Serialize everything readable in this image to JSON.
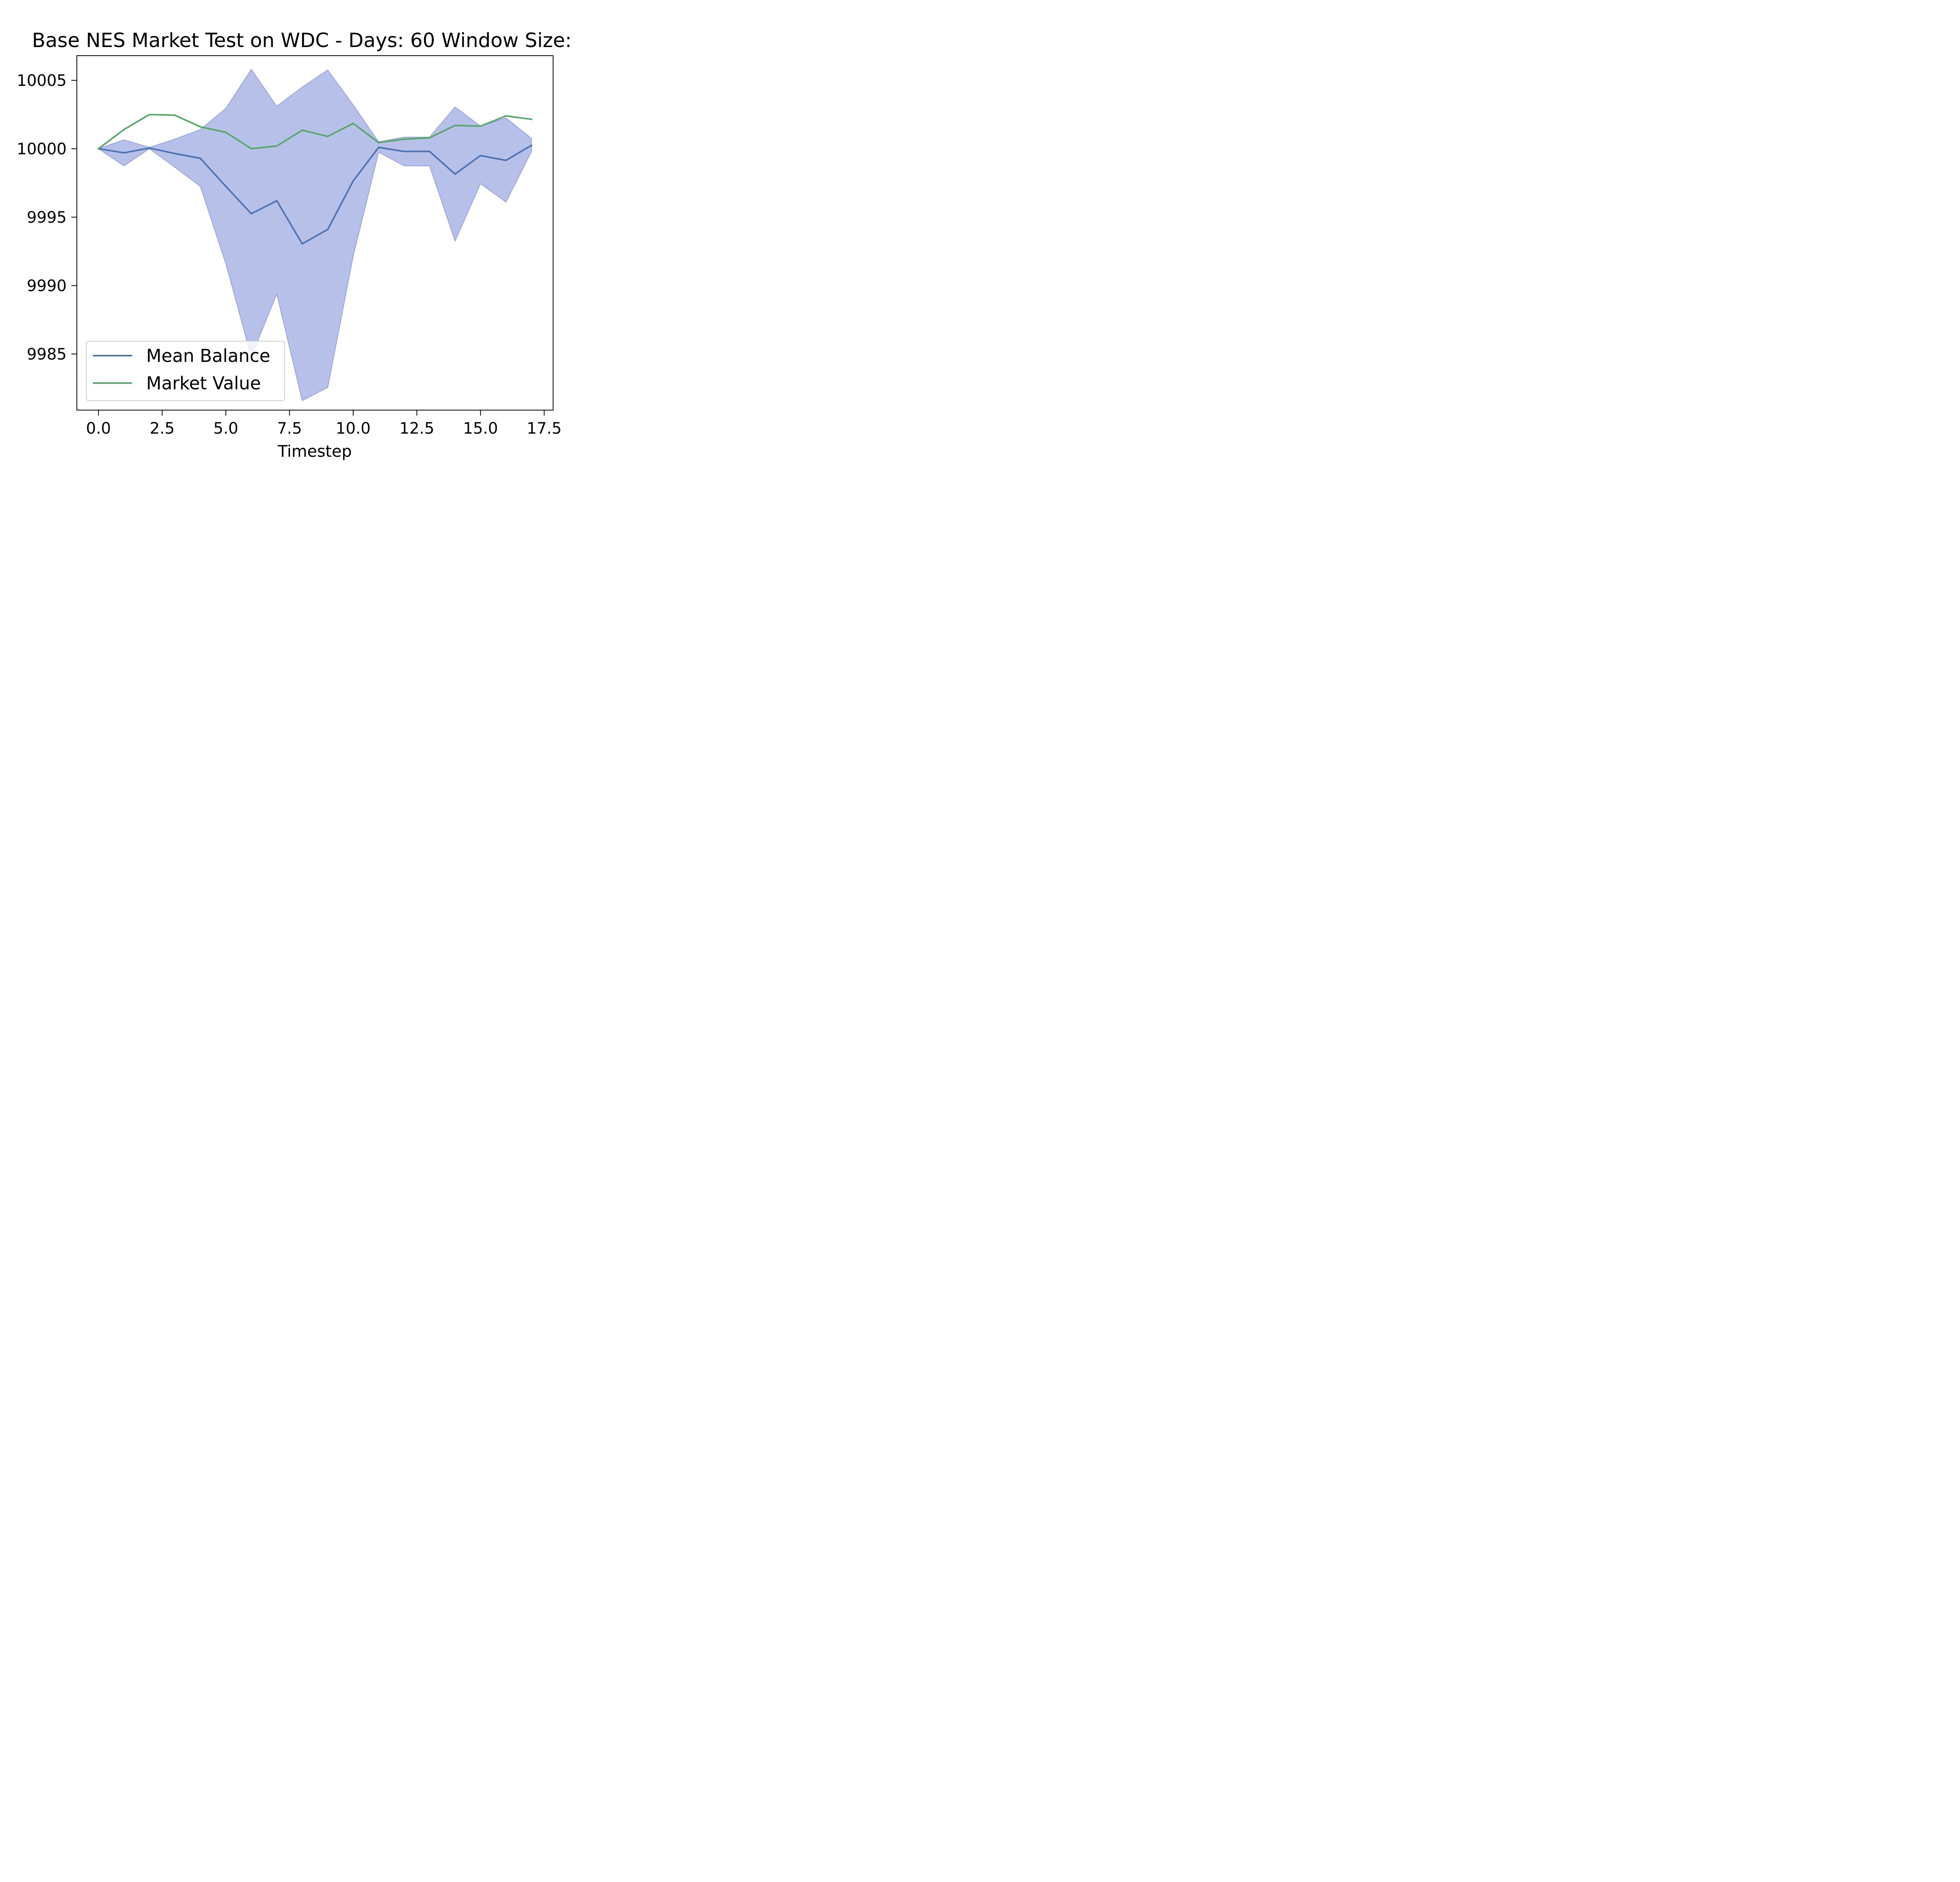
{
  "colors": {
    "background": "#ffffff",
    "mean_balance": "#4c72b0",
    "market_value": "#55a868",
    "band_fill": "#b7c0e8",
    "band_edge": "#97a3dc",
    "axes": "#000000",
    "legend_border": "#cccccc"
  },
  "chart_data": {
    "type": "line",
    "title": "Base NES Market Test on WDC - Days: 60 Window Size:",
    "xlabel": "Timestep",
    "ylabel": "",
    "xlim": [
      -0.85,
      17.85
    ],
    "ylim": [
      9980.9,
      10006.8
    ],
    "x_ticks": [
      0.0,
      2.5,
      5.0,
      7.5,
      10.0,
      12.5,
      15.0,
      17.5
    ],
    "x_tick_labels": [
      "0.0",
      "2.5",
      "5.0",
      "7.5",
      "10.0",
      "12.5",
      "15.0",
      "17.5"
    ],
    "y_ticks": [
      9985,
      9990,
      9995,
      10000,
      10005
    ],
    "y_tick_labels": [
      "9985",
      "9990",
      "9995",
      "10000",
      "10005"
    ],
    "grid": false,
    "legend_position": "lower-left",
    "x": [
      0,
      1,
      2,
      3,
      4,
      5,
      6,
      7,
      8,
      9,
      10,
      11,
      12,
      13,
      14,
      15,
      16,
      17
    ],
    "series": [
      {
        "name": "Mean Balance",
        "color": "#4c72b0",
        "values": [
          10000.0,
          9999.7,
          10000.05,
          9999.65,
          9999.3,
          9997.25,
          9995.25,
          9996.2,
          9993.05,
          9994.1,
          9997.65,
          10000.1,
          9999.8,
          9999.8,
          9998.15,
          9999.5,
          9999.15,
          10000.25
        ]
      },
      {
        "name": "Market Value",
        "color": "#55a868",
        "values": [
          10000.0,
          10001.4,
          10002.5,
          10002.45,
          10001.6,
          10001.2,
          10000.0,
          10000.2,
          10001.35,
          10000.9,
          10001.85,
          10000.45,
          10000.7,
          10000.8,
          10001.7,
          10001.65,
          10002.4,
          10002.15
        ]
      }
    ],
    "band": {
      "upper": [
        10000.0,
        10000.65,
        10000.1,
        10000.7,
        10001.4,
        10002.95,
        10005.8,
        10003.1,
        10004.5,
        10005.75,
        10003.2,
        10000.5,
        10000.85,
        10000.85,
        10003.05,
        10001.65,
        10002.25,
        10000.75
      ],
      "lower": [
        10000.0,
        9998.75,
        10000.0,
        9998.65,
        9997.25,
        9991.6,
        9984.8,
        9989.4,
        9981.6,
        9982.55,
        9992.15,
        9999.75,
        9998.75,
        9998.75,
        9993.25,
        9997.45,
        9996.1,
        9999.8
      ]
    }
  }
}
